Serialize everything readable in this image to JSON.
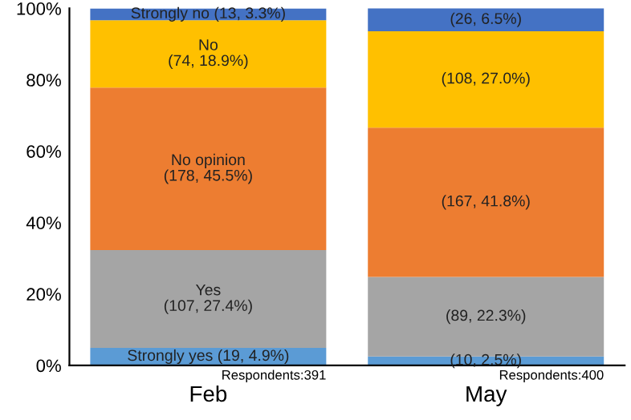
{
  "chart_data": {
    "type": "bar",
    "stacked": true,
    "categories": [
      "Feb",
      "May"
    ],
    "series": [
      {
        "color": "#5b9bd5",
        "values": [
          4.9,
          2.5
        ],
        "value_labels": [
          "Strongly yes (19, 4.9%)",
          "(10, 2.5%)"
        ]
      },
      {
        "color": "#a5a5a5",
        "values": [
          27.4,
          22.3
        ],
        "value_labels": [
          "Yes\n(107, 27.4%)",
          "(89, 22.3%)"
        ]
      },
      {
        "color": "#ed7d31",
        "values": [
          45.5,
          41.8
        ],
        "value_labels": [
          "No opinion\n(178, 45.5%)",
          "(167, 41.8%)"
        ]
      },
      {
        "color": "#ffc000",
        "values": [
          18.9,
          27.0
        ],
        "value_labels": [
          "No\n(74, 18.9%)",
          "(108, 27.0%)"
        ]
      },
      {
        "color": "#4472c4",
        "values": [
          3.3,
          6.5
        ],
        "value_labels": [
          "Strongly no (13, 3.3%)",
          "(26, 6.5%)"
        ]
      }
    ],
    "ylim": [
      0,
      100
    ],
    "yticks": [
      {
        "value": 0,
        "label": "0%"
      },
      {
        "value": 20,
        "label": "20%"
      },
      {
        "value": 40,
        "label": "40%"
      },
      {
        "value": 60,
        "label": "60%"
      },
      {
        "value": 80,
        "label": "80%"
      },
      {
        "value": 100,
        "label": "100%"
      }
    ],
    "grid": false,
    "annotations": [
      "Respondents:391",
      "Respondents:400"
    ]
  }
}
